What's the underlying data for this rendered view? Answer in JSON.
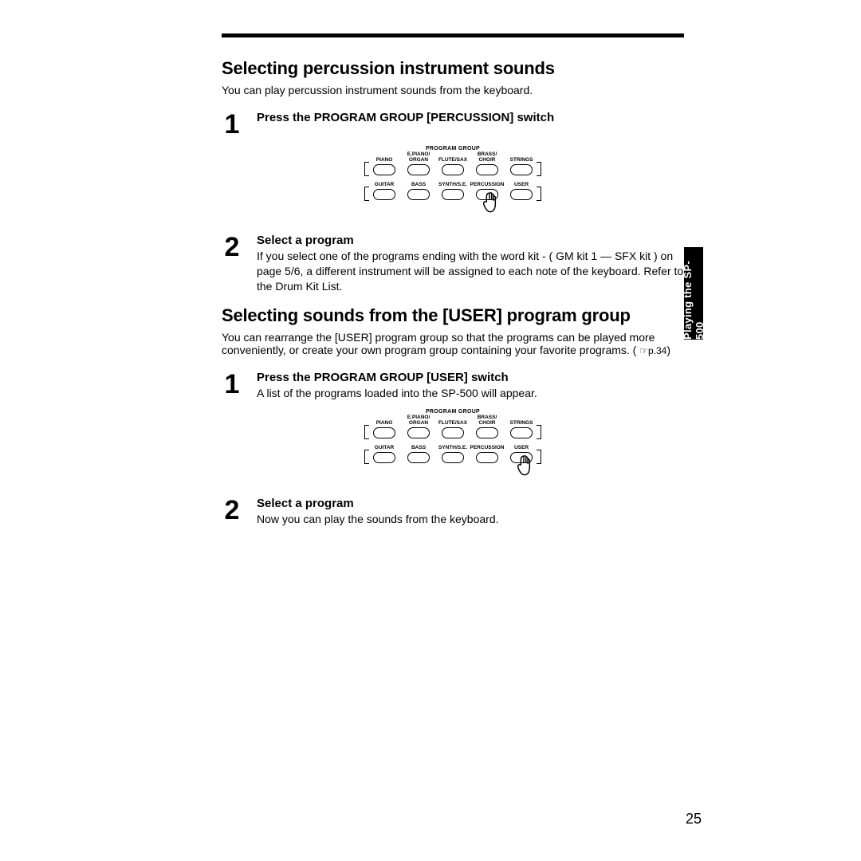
{
  "sections": {
    "percussion": {
      "heading": "Selecting percussion instrument sounds",
      "intro": "You can play percussion instrument sounds from the keyboard.",
      "step1": {
        "num": "1",
        "title": "Press the PROGRAM GROUP [PERCUSSION] switch"
      },
      "step2": {
        "num": "2",
        "title": "Select a program",
        "text": "If you select one of the programs ending with the word  kit  - ( GM kit 1 — SFX kit ) on page  5/6,  a different instrument will be assigned to each note of the keyboard. Refer to the Drum Kit List."
      }
    },
    "user": {
      "heading": "Selecting sounds from the [USER] program group",
      "intro_pre": "You can rearrange the [USER] program group so that the programs can be played more conveniently, or create your own program group containing your favorite programs. (",
      "intro_ref": "☞p.34",
      "intro_post": ")",
      "step1": {
        "num": "1",
        "title": "Press the PROGRAM GROUP [USER] switch",
        "text": "A list of the programs loaded into the SP-500 will appear."
      },
      "step2": {
        "num": "2",
        "title": "Select a program",
        "text": "Now you can play the sounds from the keyboard."
      }
    }
  },
  "diagram": {
    "title": "PROGRAM GROUP",
    "row1": [
      "PIANO",
      "E.PIANO/\nORGAN",
      "FLUTE/SAX",
      "BRASS/\nCHOIR",
      "STRINGS"
    ],
    "row2": [
      "GUITAR",
      "BASS",
      "SYNTH/S.E.",
      "PERCUSSION",
      "USER"
    ]
  },
  "side_tab": "Playing the SP-500",
  "page_number": "25",
  "colors": {
    "text": "#000000",
    "bg": "#ffffff"
  }
}
